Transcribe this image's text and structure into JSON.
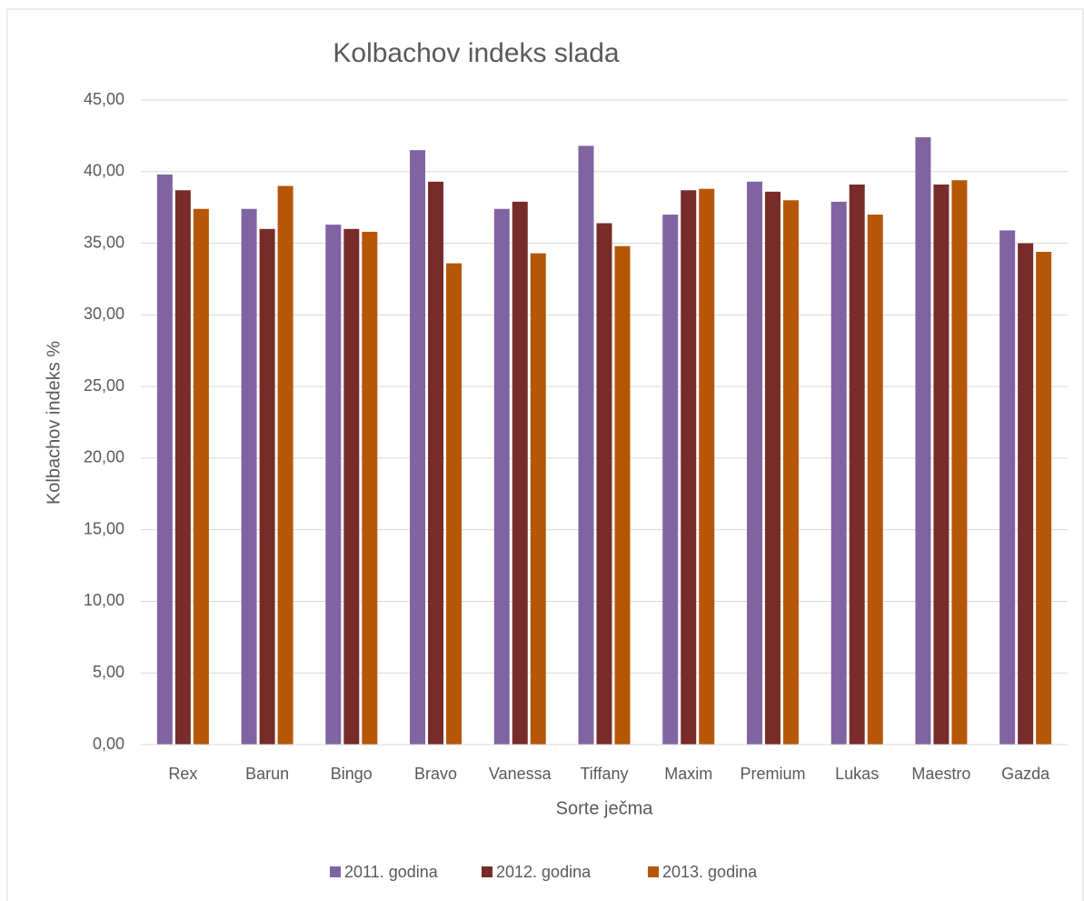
{
  "chart_data": {
    "type": "bar",
    "title": "Kolbachov indeks slada",
    "x_label": "Sorte ječma",
    "y_label": "Kolbachov indeks %",
    "categories": [
      "Rex",
      "Barun",
      "Bingo",
      "Bravo",
      "Vanessa",
      "Tiffany",
      "Maxim",
      "Premium",
      "Lukas",
      "Maestro",
      "Gazda"
    ],
    "series": [
      {
        "name": "2011. godina",
        "color": "#8064a2",
        "values": [
          39.8,
          37.4,
          36.3,
          41.5,
          37.4,
          41.8,
          37.0,
          39.3,
          37.9,
          42.4,
          35.9
        ]
      },
      {
        "name": "2012. godina",
        "color": "#772c2a",
        "values": [
          38.7,
          36.0,
          36.0,
          39.3,
          37.9,
          36.4,
          38.7,
          38.6,
          39.1,
          39.1,
          35.0
        ]
      },
      {
        "name": "2013. godina",
        "color": "#b65708",
        "values": [
          37.4,
          39.0,
          35.8,
          33.6,
          34.3,
          34.8,
          38.8,
          38.0,
          37.0,
          39.4,
          34.4
        ]
      }
    ],
    "ylim": [
      0,
      45
    ],
    "yticks": [
      {
        "value": 0,
        "label": "0,00"
      },
      {
        "value": 5,
        "label": "5,00"
      },
      {
        "value": 10,
        "label": "10,00"
      },
      {
        "value": 15,
        "label": "15,00"
      },
      {
        "value": 20,
        "label": "20,00"
      },
      {
        "value": 25,
        "label": "25,00"
      },
      {
        "value": 30,
        "label": "30,00"
      },
      {
        "value": 35,
        "label": "35,00"
      },
      {
        "value": 40,
        "label": "40,00"
      },
      {
        "value": 45,
        "label": "45,00"
      }
    ],
    "grid": true,
    "legend": "bottom"
  }
}
